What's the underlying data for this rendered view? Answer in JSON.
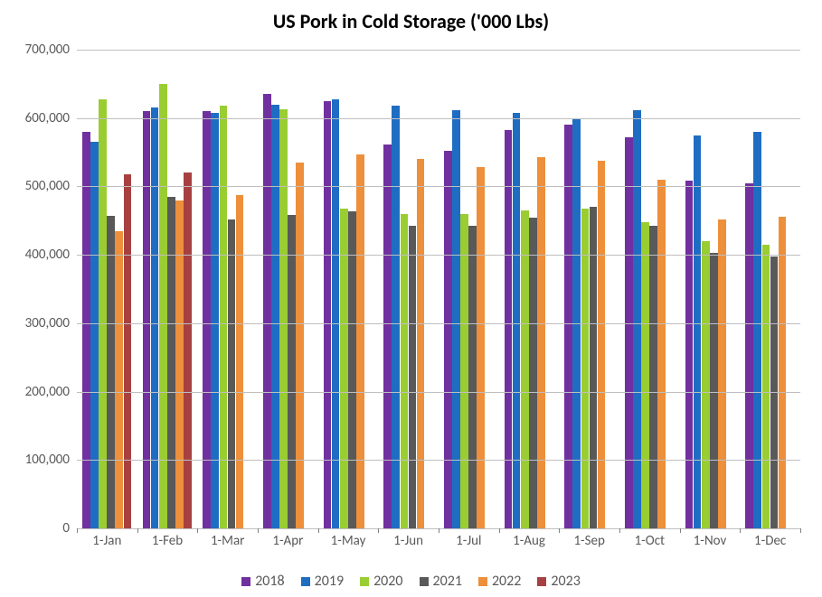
{
  "chart": {
    "type": "bar",
    "title": "US Pork in Cold Storage ('000 Lbs)",
    "title_fontsize": 22,
    "title_color": "#000000",
    "background_color": "#ffffff",
    "grid_color": "#bfbfbf",
    "axis_line_color": "#808080",
    "tick_label_color": "#595959",
    "tick_fontsize": 15,
    "legend_fontsize": 16,
    "y_axis": {
      "min": 0,
      "max": 700000,
      "tick_step": 100000,
      "tick_labels": [
        "0",
        "100,000",
        "200,000",
        "300,000",
        "400,000",
        "500,000",
        "600,000",
        "700,000"
      ]
    },
    "categories": [
      "1-Jan",
      "1-Feb",
      "1-Mar",
      "1-Apr",
      "1-May",
      "1-Jun",
      "1-Jul",
      "1-Aug",
      "1-Sep",
      "1-Oct",
      "1-Nov",
      "1-Dec"
    ],
    "series": [
      {
        "name": "2018",
        "color": "#7030a0",
        "values": [
          580000,
          610000,
          610000,
          635000,
          625000,
          562000,
          552000,
          582000,
          590000,
          572000,
          508000,
          505000
        ]
      },
      {
        "name": "2019",
        "color": "#1f6dc3",
        "values": [
          565000,
          615000,
          608000,
          620000,
          628000,
          618000,
          612000,
          607000,
          600000,
          612000,
          575000,
          580000
        ]
      },
      {
        "name": "2020",
        "color": "#9acd32",
        "values": [
          627000,
          650000,
          618000,
          613000,
          468000,
          460000,
          460000,
          465000,
          467000,
          448000,
          420000,
          415000
        ]
      },
      {
        "name": "2021",
        "color": "#595959",
        "values": [
          457000,
          485000,
          452000,
          458000,
          463000,
          443000,
          443000,
          455000,
          470000,
          443000,
          403000,
          397000
        ]
      },
      {
        "name": "2022",
        "color": "#ed8f3b",
        "values": [
          435000,
          480000,
          488000,
          535000,
          547000,
          540000,
          528000,
          543000,
          537000,
          510000,
          452000,
          456000
        ]
      },
      {
        "name": "2023",
        "color": "#a74141",
        "values": [
          518000,
          520000,
          null,
          null,
          null,
          null,
          null,
          null,
          null,
          null,
          null,
          null
        ]
      }
    ],
    "bar_group_width_ratio": 0.82,
    "legend_swatch_size": 10
  }
}
